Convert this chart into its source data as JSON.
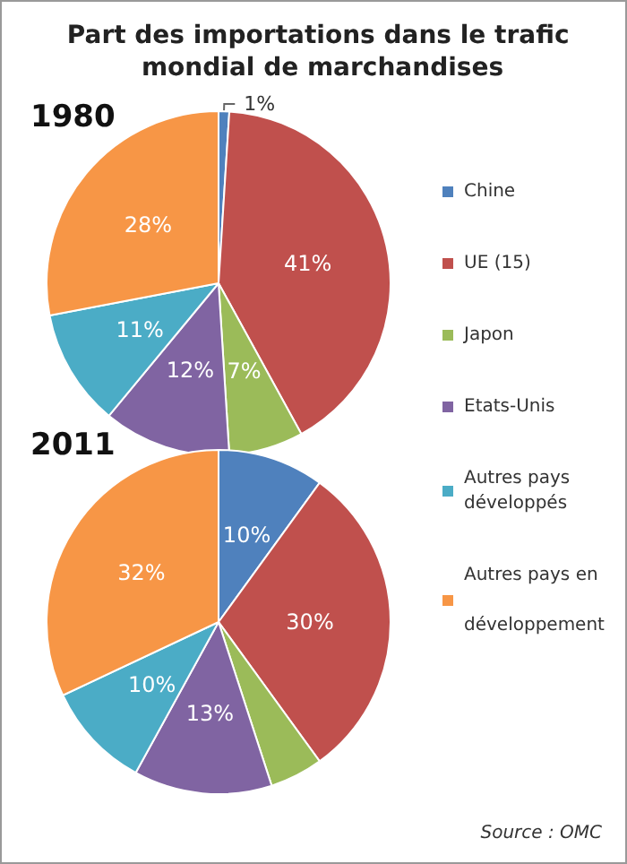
{
  "chart_data": [
    {
      "type": "pie",
      "title": "Part des importations dans le trafic mondial de marchandises",
      "subtitle": "1980",
      "categories": [
        "Chine",
        "UE (15)",
        "Japon",
        "Etats-Unis",
        "Autres pays développés",
        "Autres pays en développement"
      ],
      "values": [
        1,
        41,
        7,
        12,
        11,
        28
      ],
      "value_labels": [
        "1%",
        "41%",
        "7%",
        "12%",
        "11%",
        "28%"
      ],
      "colors": [
        "#4f81bd",
        "#c0504d",
        "#9bbb59",
        "#8064a2",
        "#4bacc6",
        "#f79646"
      ],
      "legend": "right"
    },
    {
      "type": "pie",
      "title": "2011",
      "categories": [
        null,
        null,
        null,
        null,
        null,
        null
      ],
      "values": [
        10,
        30,
        5,
        13,
        10,
        32
      ],
      "value_labels": [
        "10%",
        "30%",
        null,
        "13%",
        "10%",
        "32%"
      ],
      "colors": [
        "#4f81bd",
        "#c0504d",
        "#9bbb59",
        "#8064a2",
        "#4bacc6",
        "#f79646"
      ],
      "annotations": [
        "Source : OMC"
      ]
    }
  ]
}
